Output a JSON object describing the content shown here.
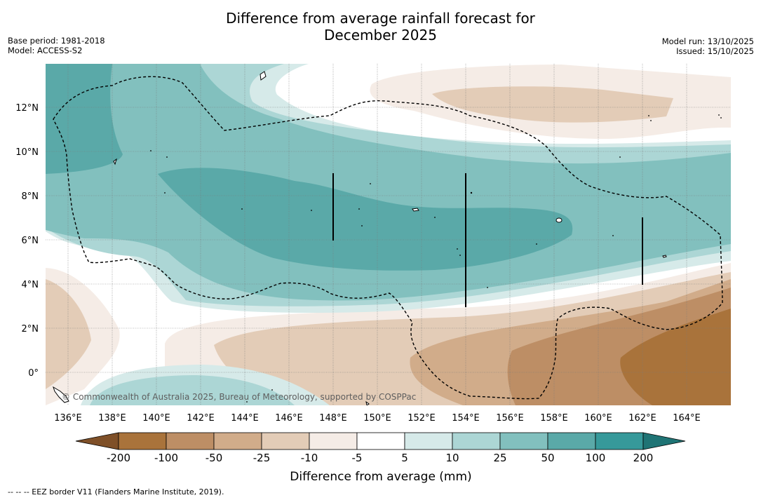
{
  "title": {
    "line1": "Difference from average rainfall forecast for",
    "line2": "December 2025"
  },
  "meta": {
    "base_period": "Base period: 1981-2018",
    "model": "Model: ACCESS-S2",
    "model_run": "Model run: 13/10/2025",
    "issued": "Issued: 15/10/2025"
  },
  "map": {
    "lat_labels": [
      "12°N",
      "10°N",
      "8°N",
      "6°N",
      "4°N",
      "2°N",
      "0°"
    ],
    "lon_labels": [
      "136°E",
      "138°E",
      "140°E",
      "142°E",
      "144°E",
      "146°E",
      "148°E",
      "150°E",
      "152°E",
      "154°E",
      "156°E",
      "158°E",
      "160°E",
      "162°E",
      "164°E"
    ],
    "copyright": "© Commonwealth of Australia 2025, Bureau of Meteorology, supported by COSPPac"
  },
  "colorbar": {
    "labels": [
      "-200",
      "-100",
      "-50",
      "-25",
      "-10",
      "-5",
      "5",
      "10",
      "25",
      "50",
      "100",
      "200"
    ],
    "colors": [
      "#7f5028",
      "#a9733b",
      "#bd8e65",
      "#d1ac8a",
      "#e3ccb7",
      "#f5ece6",
      "#ffffff",
      "#d6eae9",
      "#acd6d5",
      "#82c0be",
      "#5aa9a8",
      "#36999a",
      "#1f7475"
    ],
    "title": "Difference from average (mm)"
  },
  "footnote": "--  --  -- EEZ border V11 (Flanders Marine Institute, 2019)."
}
